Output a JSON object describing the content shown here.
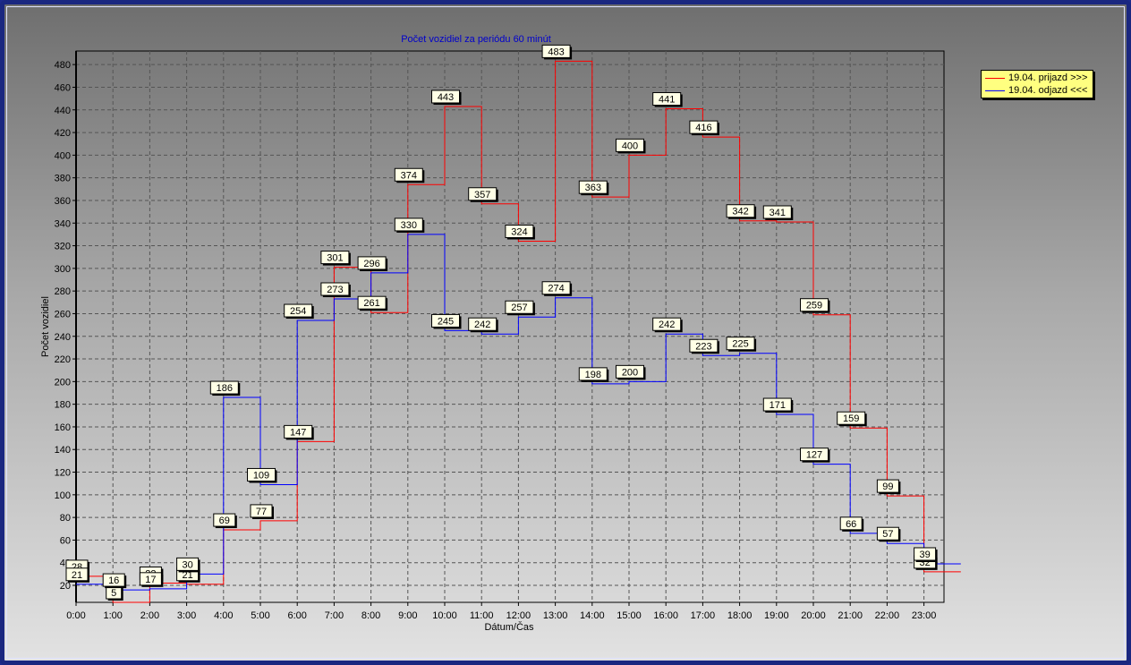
{
  "chart_data": {
    "type": "line",
    "step": true,
    "title": "Počet vozidiel za periódu 60 minút",
    "xlabel": "Dátum/Čas",
    "ylabel": "Počet vozidiel",
    "categories": [
      "0:00",
      "1:00",
      "2:00",
      "3:00",
      "4:00",
      "5:00",
      "6:00",
      "7:00",
      "8:00",
      "9:00",
      "10:00",
      "11:00",
      "12:00",
      "13:00",
      "14:00",
      "15:00",
      "16:00",
      "17:00",
      "18:00",
      "19:00",
      "20:00",
      "21:00",
      "22:00",
      "23:00"
    ],
    "ylim": [
      5,
      492
    ],
    "yticks": [
      20,
      40,
      60,
      80,
      100,
      120,
      140,
      160,
      180,
      200,
      220,
      240,
      260,
      280,
      300,
      320,
      340,
      360,
      380,
      400,
      420,
      440,
      460,
      480
    ],
    "grid": true,
    "legend_position": "right",
    "series": [
      {
        "name": "19.04.  prijazd >>>",
        "color": "#ff0000",
        "values": [
          28,
          5,
          22,
          21,
          69,
          77,
          147,
          301,
          261,
          374,
          443,
          357,
          324,
          483,
          363,
          400,
          441,
          416,
          342,
          341,
          259,
          159,
          99,
          32
        ]
      },
      {
        "name": "19.04.  odjazd <<<",
        "color": "#0000ff",
        "values": [
          21,
          16,
          17,
          30,
          186,
          109,
          254,
          273,
          296,
          330,
          245,
          242,
          257,
          274,
          198,
          200,
          242,
          223,
          225,
          171,
          127,
          66,
          57,
          39
        ]
      }
    ]
  }
}
